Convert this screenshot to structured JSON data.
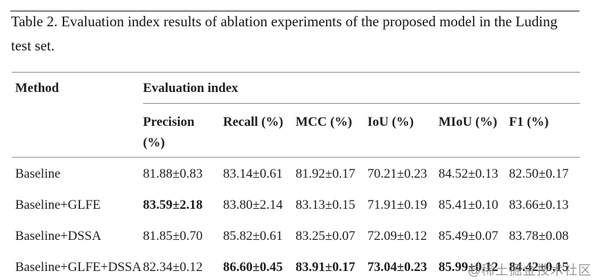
{
  "caption": {
    "label": "Table 2.",
    "text": "Evaluation index results of ablation experiments of the proposed model in the Luding test set."
  },
  "table": {
    "method_header": "Method",
    "group_header": "Evaluation index",
    "columns": [
      "Precision (%)",
      "Recall (%)",
      "MCC (%)",
      "IoU (%)",
      "MIoU (%)",
      "F1 (%)"
    ],
    "rows": [
      {
        "method": "Baseline",
        "values": [
          "81.88±0.83",
          "83.14±0.61",
          "81.92±0.17",
          "70.21±0.23",
          "84.52±0.13",
          "82.50±0.17"
        ]
      },
      {
        "method": "Baseline+GLFE",
        "values": [
          "83.59±2.18",
          "83.80±2.14",
          "83.13±0.15",
          "71.91±0.19",
          "85.41±0.10",
          "83.66±0.13"
        ]
      },
      {
        "method": "Baseline+DSSA",
        "values": [
          "81.85±0.70",
          "85.82±0.61",
          "83.25±0.07",
          "72.09±0.12",
          "85.49±0.07",
          "83.78±0.08"
        ]
      },
      {
        "method": "Baseline+GLFE+DSSA",
        "values": [
          "82.34±0.12",
          "86.60±0.45",
          "83.91±0.17",
          "73.04±0.23",
          "85.99±0.12",
          "84.42±0.15"
        ]
      }
    ]
  },
  "watermark": "@稀土掘金技术社区",
  "colors": {
    "text": "#1f1f1f",
    "rule_heavy": "#7f7f7f",
    "rule_thin": "#8c8c8c",
    "watermark_gray": "#7d7d7d"
  }
}
